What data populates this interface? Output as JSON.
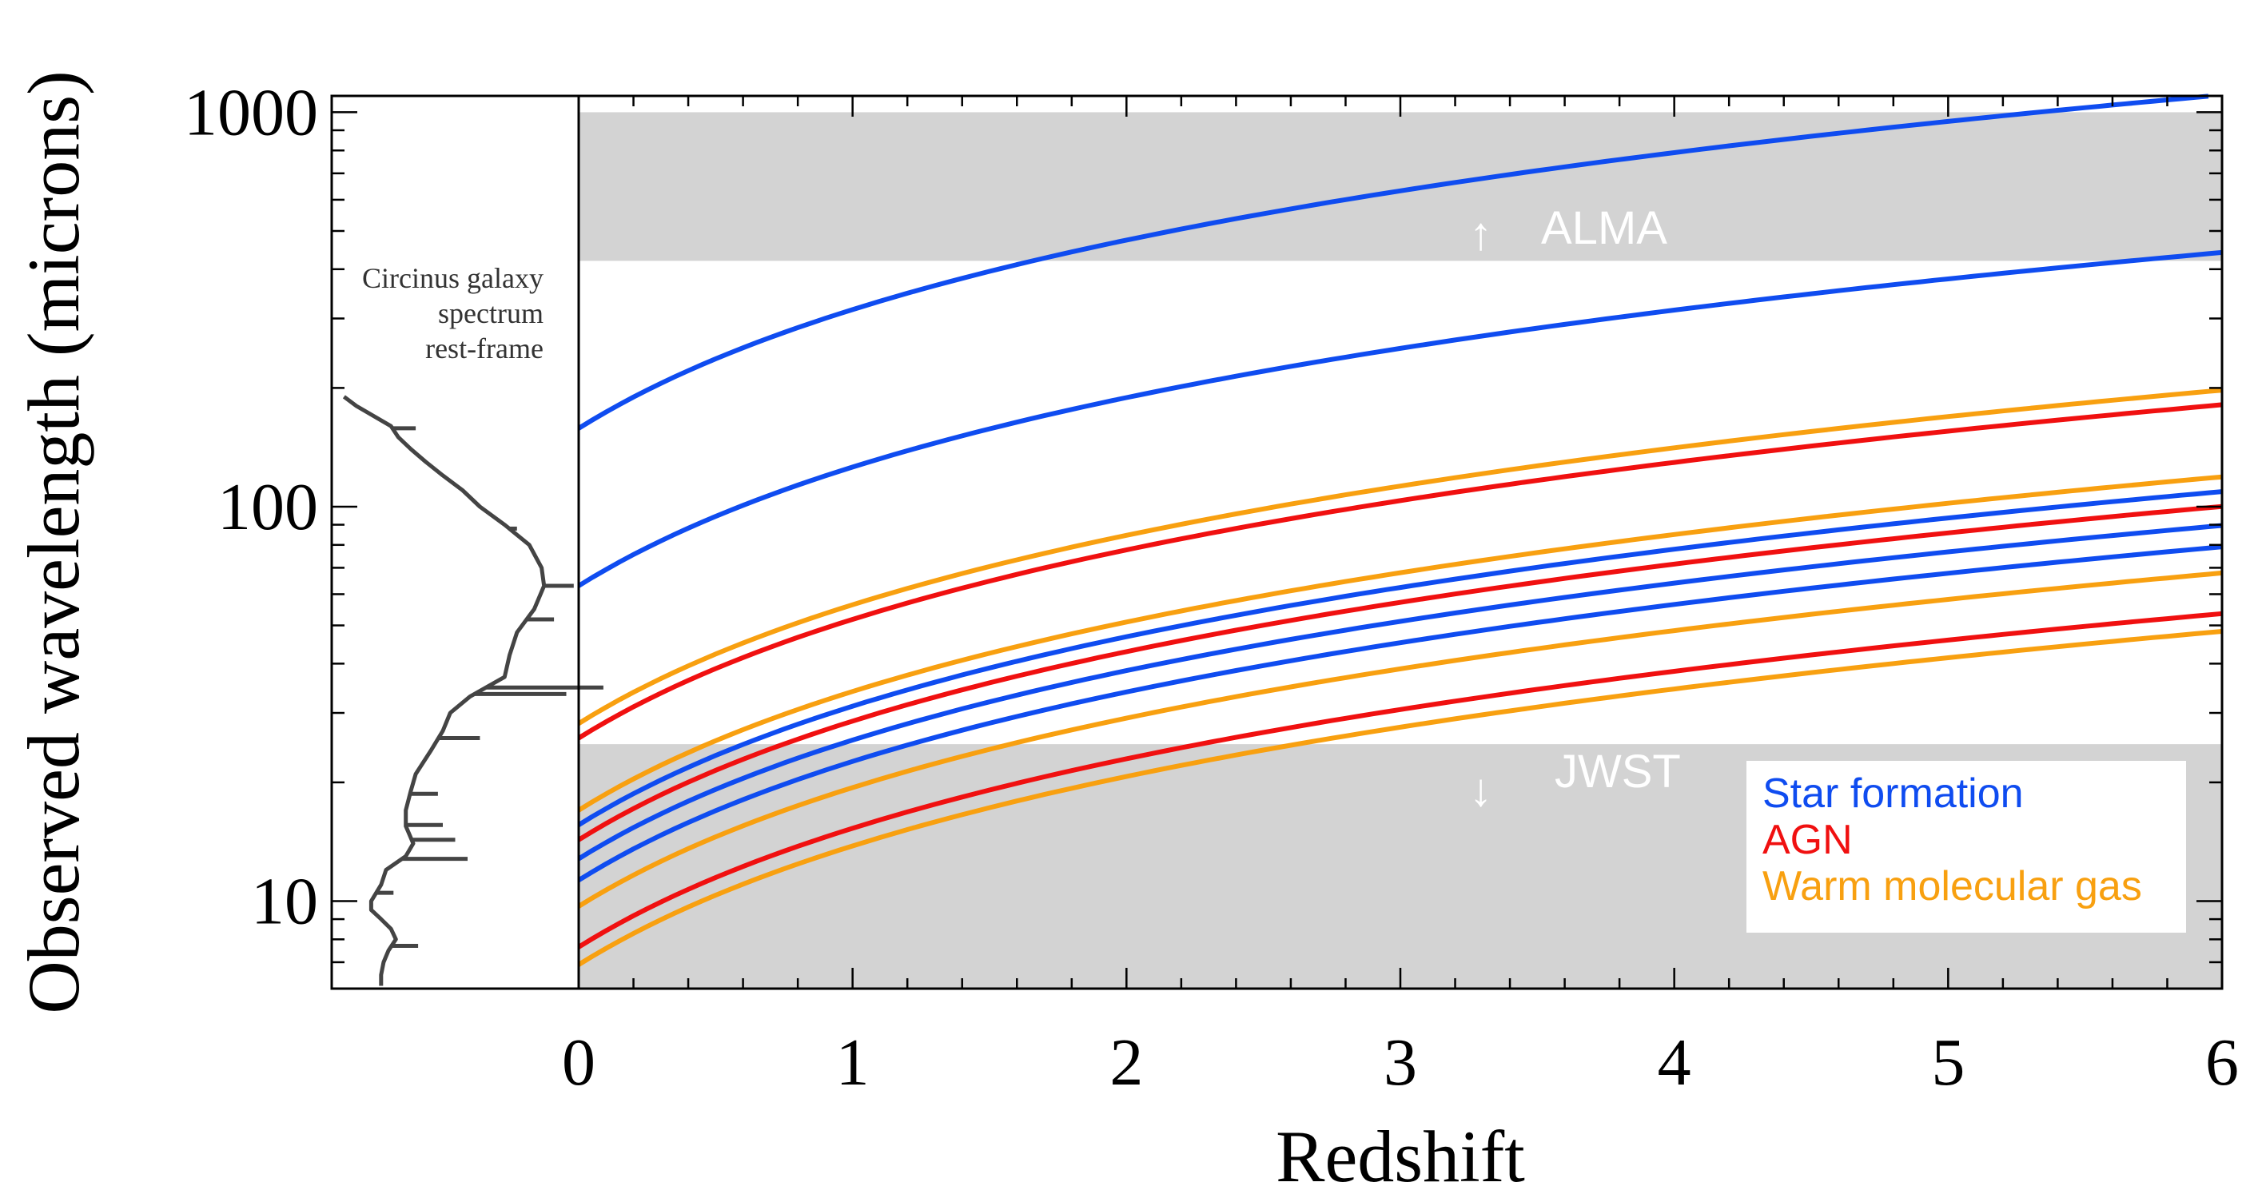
{
  "chart_data": {
    "type": "line",
    "title": "",
    "xlabel": "Redshift",
    "ylabel": "Observed wavelength (microns)",
    "xlim": [
      0,
      6
    ],
    "ylim": [
      6,
      1100
    ],
    "yscale": "log",
    "x_ticks": [
      "0",
      "1",
      "2",
      "3",
      "4",
      "5",
      "6"
    ],
    "y_ticks": [
      {
        "value": 10,
        "label": "10"
      },
      {
        "value": 100,
        "label": "100"
      },
      {
        "value": 1000,
        "label": "1000"
      }
    ],
    "bands": [
      {
        "name": "ALMA",
        "label": "ALMA",
        "arrow": "↑",
        "y_from": 420,
        "y_to": 1000,
        "color": "#d3d3d3"
      },
      {
        "name": "JWST",
        "label": "JWST",
        "arrow": "↓",
        "y_from": 6,
        "y_to": 25,
        "color": "#d3d3d3"
      }
    ],
    "categories": {
      "star_formation": {
        "label": "Star formation",
        "color": "#0f4cf0"
      },
      "agn": {
        "label": "AGN",
        "color": "#f01010"
      },
      "warm_gas": {
        "label": "Warm molecular gas",
        "color": "#f8a010"
      }
    },
    "series": [
      {
        "name": "Star formation 158 micron",
        "category": "star_formation",
        "rest_wavelength": 158
      },
      {
        "name": "Star formation 63 micron",
        "category": "star_formation",
        "rest_wavelength": 63
      },
      {
        "name": "Warm molecular gas 28.2 micron",
        "category": "warm_gas",
        "rest_wavelength": 28.2
      },
      {
        "name": "AGN 25.9 micron",
        "category": "agn",
        "rest_wavelength": 25.9
      },
      {
        "name": "Warm molecular gas 17.0 micron",
        "category": "warm_gas",
        "rest_wavelength": 17.0
      },
      {
        "name": "Star formation 15.6 micron",
        "category": "star_formation",
        "rest_wavelength": 15.6
      },
      {
        "name": "AGN 14.3 micron",
        "category": "agn",
        "rest_wavelength": 14.3
      },
      {
        "name": "Star formation 12.8 micron",
        "category": "star_formation",
        "rest_wavelength": 12.8
      },
      {
        "name": "Star formation 11.3 micron",
        "category": "star_formation",
        "rest_wavelength": 11.3
      },
      {
        "name": "Warm molecular gas 9.7 micron",
        "category": "warm_gas",
        "rest_wavelength": 9.7
      },
      {
        "name": "AGN 7.65 micron",
        "category": "agn",
        "rest_wavelength": 7.65
      },
      {
        "name": "Warm molecular gas 6.9 micron",
        "category": "warm_gas",
        "rest_wavelength": 6.9
      }
    ],
    "spectrum": {
      "label_lines": [
        "Circinus galaxy",
        "spectrum",
        "rest-frame"
      ],
      "color": "#444444",
      "points": [
        {
          "w": 190,
          "f": 0.05
        },
        {
          "w": 180,
          "f": 0.1
        },
        {
          "w": 160,
          "f": 0.24
        },
        {
          "w": 150,
          "f": 0.27
        },
        {
          "w": 140,
          "f": 0.32
        },
        {
          "w": 130,
          "f": 0.38
        },
        {
          "w": 120,
          "f": 0.45
        },
        {
          "w": 110,
          "f": 0.53
        },
        {
          "w": 100,
          "f": 0.6
        },
        {
          "w": 90,
          "f": 0.7
        },
        {
          "w": 80,
          "f": 0.8
        },
        {
          "w": 70,
          "f": 0.85
        },
        {
          "w": 63,
          "f": 0.86
        },
        {
          "w": 55,
          "f": 0.82
        },
        {
          "w": 48,
          "f": 0.75
        },
        {
          "w": 42,
          "f": 0.72
        },
        {
          "w": 37,
          "f": 0.7
        },
        {
          "w": 33,
          "f": 0.56
        },
        {
          "w": 30,
          "f": 0.48
        },
        {
          "w": 27,
          "f": 0.45
        },
        {
          "w": 24,
          "f": 0.4
        },
        {
          "w": 21,
          "f": 0.34
        },
        {
          "w": 19,
          "f": 0.32
        },
        {
          "w": 17,
          "f": 0.3
        },
        {
          "w": 15.5,
          "f": 0.3
        },
        {
          "w": 14,
          "f": 0.33
        },
        {
          "w": 13,
          "f": 0.3
        },
        {
          "w": 12,
          "f": 0.22
        },
        {
          "w": 11,
          "f": 0.2
        },
        {
          "w": 10,
          "f": 0.16
        },
        {
          "w": 9.5,
          "f": 0.16
        },
        {
          "w": 9,
          "f": 0.2
        },
        {
          "w": 8.5,
          "f": 0.24
        },
        {
          "w": 8,
          "f": 0.26
        },
        {
          "w": 7.5,
          "f": 0.23
        },
        {
          "w": 7,
          "f": 0.21
        },
        {
          "w": 6.5,
          "f": 0.2
        },
        {
          "w": 6.1,
          "f": 0.2
        }
      ],
      "lines": [
        {
          "w": 158,
          "f": 0.34
        },
        {
          "w": 88,
          "f": 0.75
        },
        {
          "w": 63,
          "f": 0.98
        },
        {
          "w": 51.8,
          "f": 0.9
        },
        {
          "w": 34.8,
          "f": 1.1
        },
        {
          "w": 33.5,
          "f": 0.95
        },
        {
          "w": 25.9,
          "f": 0.6
        },
        {
          "w": 18.7,
          "f": 0.43
        },
        {
          "w": 15.6,
          "f": 0.45
        },
        {
          "w": 14.3,
          "f": 0.5
        },
        {
          "w": 12.8,
          "f": 0.55
        },
        {
          "w": 10.5,
          "f": 0.25
        },
        {
          "w": 7.7,
          "f": 0.35
        }
      ]
    }
  }
}
